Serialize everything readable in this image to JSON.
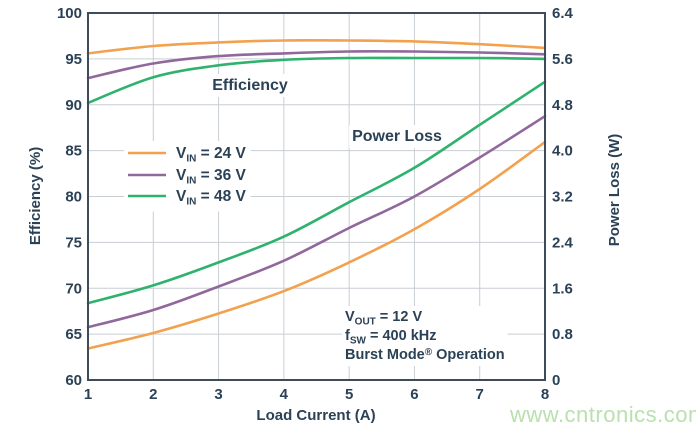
{
  "watermark": {
    "text": "www.cntronics.com",
    "color": "#b9e0ae"
  },
  "chart_data": {
    "type": "line",
    "title": "",
    "xlabel": "Load Current (A)",
    "y_left_label": "Efficiency (%)",
    "y_right_label": "Power Loss (W)",
    "x_range": [
      1,
      8
    ],
    "x_ticks": [
      "1",
      "2",
      "3",
      "4",
      "5",
      "6",
      "7",
      "8"
    ],
    "y_left_range": [
      60,
      100
    ],
    "y_left_ticks": [
      "60",
      "65",
      "70",
      "75",
      "80",
      "85",
      "90",
      "95",
      "100"
    ],
    "y_right_range": [
      0,
      6.4
    ],
    "y_right_ticks": [
      "0",
      "0.8",
      "1.6",
      "2.4",
      "3.2",
      "4.0",
      "4.8",
      "5.6",
      "6.4"
    ],
    "grid": true,
    "legend_position": "upper-left-inside",
    "curve_group_labels": {
      "efficiency": "Efficiency",
      "power_loss": "Power Loss"
    },
    "x": [
      1,
      2,
      3,
      4,
      5,
      6,
      7,
      8
    ],
    "legend": [
      {
        "name": "VIN = 24 V",
        "color": "#F2A24E",
        "label_parts": [
          {
            "t": "V"
          },
          {
            "t": "IN",
            "sub": true
          },
          {
            "t": " = 24 V"
          }
        ]
      },
      {
        "name": "VIN = 36 V",
        "color": "#91689B",
        "label_parts": [
          {
            "t": "V"
          },
          {
            "t": "IN",
            "sub": true
          },
          {
            "t": " = 36 V"
          }
        ]
      },
      {
        "name": "VIN = 48 V",
        "color": "#2EB26E",
        "label_parts": [
          {
            "t": "V"
          },
          {
            "t": "IN",
            "sub": true
          },
          {
            "t": " = 48 V"
          }
        ]
      }
    ],
    "efficiency_series": [
      {
        "name": "VIN = 24 V",
        "color": "#F2A24E",
        "values": [
          95.6,
          96.4,
          96.8,
          97.0,
          97.0,
          96.9,
          96.6,
          96.2
        ]
      },
      {
        "name": "VIN = 36 V",
        "color": "#91689B",
        "values": [
          92.9,
          94.5,
          95.3,
          95.6,
          95.8,
          95.8,
          95.7,
          95.5
        ]
      },
      {
        "name": "VIN = 48 V",
        "color": "#2EB26E",
        "values": [
          90.2,
          93.0,
          94.3,
          94.9,
          95.1,
          95.1,
          95.1,
          95.0
        ]
      }
    ],
    "power_loss_series": [
      {
        "name": "VIN = 24 V",
        "color": "#F2A24E",
        "values": [
          0.55,
          0.82,
          1.16,
          1.55,
          2.05,
          2.63,
          3.33,
          4.15
        ]
      },
      {
        "name": "VIN = 36 V",
        "color": "#91689B",
        "values": [
          0.92,
          1.22,
          1.63,
          2.08,
          2.65,
          3.2,
          3.88,
          4.6
        ]
      },
      {
        "name": "VIN = 48 V",
        "color": "#2EB26E",
        "values": [
          1.34,
          1.65,
          2.05,
          2.5,
          3.1,
          3.7,
          4.45,
          5.2
        ]
      }
    ],
    "annotations": [
      {
        "text": "VOUT = 12 V",
        "parts": [
          {
            "t": "V"
          },
          {
            "t": "OUT",
            "sub": true
          },
          {
            "t": " = 12 V"
          }
        ]
      },
      {
        "text": "fSW = 400 kHz",
        "parts": [
          {
            "t": "f"
          },
          {
            "t": "SW",
            "sub": true
          },
          {
            "t": " = 400 kHz"
          }
        ]
      },
      {
        "text": "Burst Mode® Operation",
        "parts": [
          {
            "t": "Burst Mode"
          },
          {
            "t": "®",
            "sup": true
          },
          {
            "t": " Operation"
          }
        ]
      }
    ],
    "colors": {
      "text": "#2b4156",
      "grid": "#c9ced3",
      "frame": "#3e4c59",
      "background": "#ffffff"
    }
  }
}
